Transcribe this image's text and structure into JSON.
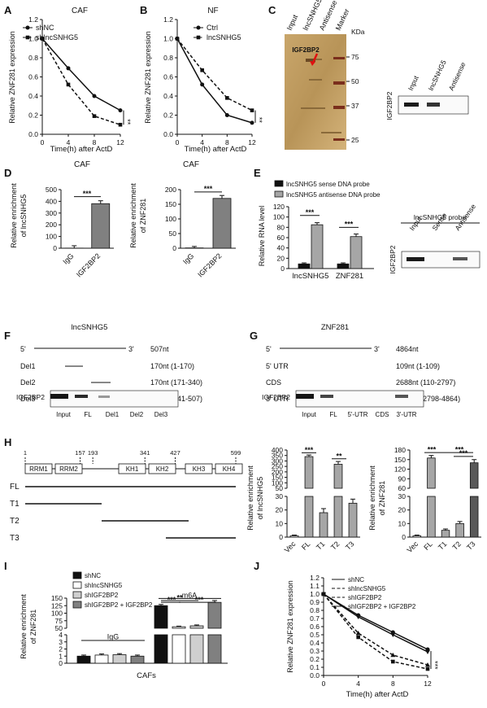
{
  "panels": {
    "A": {
      "letter": "A",
      "title": "CAF",
      "xlabel": "Time(h) after ActD",
      "ylabel": "Relative ZNF281 expression",
      "sig": "**",
      "xticks": [
        "0",
        "4",
        "8",
        "12"
      ],
      "yticks": [
        "0.0",
        "0.2",
        "0.4",
        "0.6",
        "0.8",
        "1.0",
        "1.2"
      ]
    },
    "B": {
      "letter": "B",
      "title": "NF",
      "xlabel": "Time(h) after ActD",
      "ylabel": "Relative ZNF281 expression",
      "sig": "**",
      "xticks": [
        "0",
        "4",
        "8",
        "12"
      ],
      "yticks": [
        "0.0",
        "0.2",
        "0.4",
        "0.6",
        "0.8",
        "1.0",
        "1.2"
      ]
    },
    "C": {
      "letter": "C",
      "lanes": [
        "Input",
        "lncSNHG5",
        "Antisense",
        "Marker"
      ],
      "kda_label": "KDa",
      "kda": [
        "75",
        "50",
        "37",
        "25"
      ],
      "band_label": "IGF2BP2",
      "wb_lanes": [
        "Input",
        "lncSNHG5",
        "Antisense"
      ],
      "wb_label": "IGF2BP2"
    },
    "D1": {
      "letter": "D",
      "title": "CAF",
      "ylabel1": "Relative enrichment",
      "ylabel2": "of  lncSNHG5",
      "sig": "***",
      "yticks": [
        "0",
        "100",
        "200",
        "300",
        "400",
        "500"
      ]
    },
    "D2": {
      "title": "CAF",
      "ylabel1": "Relative enrichment",
      "ylabel2": "of ZNF281",
      "sig": "***",
      "yticks": [
        "0",
        "50",
        "100",
        "150",
        "200"
      ]
    },
    "E": {
      "letter": "E",
      "ylabel": "Relative RNA level",
      "legend": [
        "lncSNHG5 sense DNA probe",
        "lncSNHG5 antisense DNA probe"
      ],
      "sig1": "***",
      "sig2": "***",
      "yticks": [
        "0",
        "20",
        "40",
        "60",
        "80",
        "100",
        "120"
      ],
      "probe_title": "lncSNHG5 probe",
      "wb_lanes": [
        "Input",
        "Sense",
        "Antisense"
      ],
      "wb_label": "IGF2BP2"
    },
    "F": {
      "letter": "F",
      "gene": "lncSNHG5",
      "five": "5'",
      "three": "3'",
      "rows": [
        {
          "name": "",
          "len": "507nt"
        },
        {
          "name": "Del1",
          "len": "170nt (1-170)"
        },
        {
          "name": "Del2",
          "len": "170nt (171-340)"
        },
        {
          "name": "Del3",
          "len": "167nt (341-507)"
        }
      ],
      "wb_label": "IGF2BP2",
      "lanes": [
        "Input",
        "FL",
        "Del1",
        "Del2",
        "Del3"
      ]
    },
    "G": {
      "letter": "G",
      "gene": "ZNF281",
      "five": "5'",
      "three": "3'",
      "rows": [
        {
          "name": "",
          "len": "4864nt"
        },
        {
          "name": "5' UTR",
          "len": "109nt (1-109)"
        },
        {
          "name": "CDS",
          "len": "2688nt (110-2797)"
        },
        {
          "name": "3' UTR",
          "len": "2067nt (2798-4864)"
        }
      ],
      "wb_label": "IGF2BP2",
      "lanes": [
        "Input",
        "FL",
        "5'-UTR",
        "CDS",
        "3'-UTR"
      ]
    },
    "H": {
      "letter": "H",
      "positions": [
        "1",
        "157",
        "193",
        "341",
        "427",
        "599"
      ],
      "domains": [
        "RRM1",
        "RRM2",
        "KH1",
        "KH2",
        "KH3",
        "KH4"
      ],
      "constructs": [
        "FL",
        "T1",
        "T2",
        "T3"
      ],
      "h1": {
        "ylabel1": "Relative enrichment",
        "ylabel2": "of lncSNHG5",
        "yticks_top": [
          "50",
          "100",
          "150",
          "200",
          "250",
          "300",
          "350",
          "400"
        ],
        "yticks_bot": [
          "0",
          "10",
          "20",
          "30"
        ],
        "sig": [
          "***",
          "**"
        ]
      },
      "h2": {
        "ylabel1": "Relative enrichment",
        "ylabel2": "of ZNF281",
        "yticks_top": [
          "60",
          "90",
          "120",
          "150",
          "180"
        ],
        "yticks_bot": [
          "0",
          "10",
          "20",
          "30"
        ],
        "sig": [
          "***",
          "***",
          "***"
        ]
      }
    },
    "I": {
      "letter": "I",
      "legend": [
        "shNC",
        "shlncSNHG5",
        "shIGF2BP2",
        "shIGF2BP2 + IGF2BP2"
      ],
      "ylabel1": "Relative enrichment",
      "ylabel2": "of ZNF281",
      "igg": "IgG",
      "m6a": "m6A",
      "xlabel": "CAFs",
      "yticks_top": [
        "50",
        "75",
        "100",
        "125",
        "150"
      ],
      "yticks_bot": [
        "0",
        "1",
        "2",
        "3",
        "4"
      ],
      "sig": [
        "***",
        "**",
        "***"
      ]
    },
    "J": {
      "letter": "J",
      "legend": [
        "shNC",
        "shlncSNHG5",
        "shIGF2BP2",
        "shIGF2BP2 + IGF2BP2"
      ],
      "xlabel": "Time(h) after ActD",
      "ylabel": "Relative  ZNF281 expression",
      "sig": "***",
      "xticks": [
        "0",
        "4",
        "8",
        "12"
      ],
      "yticks": [
        "0.0",
        "0.1",
        "0.2",
        "0.3",
        "0.4",
        "0.5",
        "0.6",
        "0.7",
        "0.8",
        "0.9",
        "1.0",
        "1.1",
        "1.2"
      ]
    }
  },
  "chart_data": [
    {
      "type": "line",
      "panel": "A",
      "title": "CAF",
      "xlabel": "Time(h) after ActD",
      "ylabel": "Relative ZNF281 expression",
      "x": [
        0,
        4,
        8,
        12
      ],
      "xlim": [
        0,
        12
      ],
      "ylim": [
        0,
        1.2
      ],
      "series": [
        {
          "name": "shNC",
          "style": "solid",
          "values": [
            1.0,
            0.69,
            0.4,
            0.25
          ]
        },
        {
          "name": "shlncSNHG5",
          "style": "dashed",
          "values": [
            1.0,
            0.52,
            0.19,
            0.1
          ]
        }
      ]
    },
    {
      "type": "line",
      "panel": "B",
      "title": "NF",
      "xlabel": "Time(h) after ActD",
      "ylabel": "Relative ZNF281 expression",
      "x": [
        0,
        4,
        8,
        12
      ],
      "xlim": [
        0,
        12
      ],
      "ylim": [
        0,
        1.2
      ],
      "series": [
        {
          "name": "Ctrl",
          "style": "solid",
          "values": [
            1.0,
            0.52,
            0.2,
            0.12
          ]
        },
        {
          "name": "lncSNHG5",
          "style": "dashed",
          "values": [
            1.0,
            0.67,
            0.38,
            0.25
          ]
        }
      ]
    },
    {
      "type": "bar",
      "panel": "D-left",
      "title": "CAF",
      "categories": [
        "IgG",
        "IGF2BP2"
      ],
      "values": [
        1.0,
        380
      ],
      "errors": [
        20,
        25
      ],
      "colors": [
        "#d9d9d9",
        "#808080"
      ],
      "ylim": [
        0,
        500
      ]
    },
    {
      "type": "bar",
      "panel": "D-right",
      "title": "CAF",
      "categories": [
        "IgG",
        "IGF2BP2"
      ],
      "values": [
        1.0,
        170
      ],
      "errors": [
        5,
        10
      ],
      "colors": [
        "#d9d9d9",
        "#808080"
      ],
      "ylim": [
        0,
        200
      ]
    },
    {
      "type": "bar",
      "panel": "E",
      "ylabel": "Relative RNA level",
      "categories": [
        "lncSNHG5",
        "ZNF281"
      ],
      "ylim": [
        0,
        120
      ],
      "series": [
        {
          "name": "lncSNHG5 sense DNA probe",
          "color": "#111111",
          "values": [
            9,
            9
          ],
          "errors": [
            2,
            2
          ]
        },
        {
          "name": "lncSNHG5 antisense DNA probe",
          "color": "#a6a6a6",
          "values": [
            85,
            62
          ],
          "errors": [
            4,
            5
          ]
        }
      ]
    },
    {
      "type": "bar",
      "panel": "H-lncSNHG5",
      "categories": [
        "Vec",
        "FL",
        "T1",
        "T2",
        "T3"
      ],
      "values": [
        1,
        340,
        18,
        270,
        25
      ],
      "errors": [
        0.5,
        15,
        3,
        25,
        3
      ],
      "colors": [
        "#f2f2f2",
        "#a6a6a6",
        "#a6a6a6",
        "#a6a6a6",
        "#a6a6a6"
      ]
    },
    {
      "type": "bar",
      "panel": "H-ZNF281",
      "categories": [
        "Vec",
        "FL",
        "T1",
        "T2",
        "T3"
      ],
      "values": [
        1,
        155,
        5,
        10,
        140
      ],
      "errors": [
        0.5,
        8,
        1,
        1.5,
        10
      ],
      "colors": [
        "#f2f2f2",
        "#a6a6a6",
        "#a6a6a6",
        "#a6a6a6",
        "#595959"
      ]
    },
    {
      "type": "bar",
      "panel": "I",
      "xlabel": "CAFs",
      "groups": [
        "IgG",
        "m6A"
      ],
      "series": [
        {
          "name": "shNC",
          "color": "#111111",
          "values": [
            1.0,
            125
          ],
          "errors": [
            0.15,
            4
          ]
        },
        {
          "name": "shlncSNHG5",
          "color": "#ffffff",
          "values": [
            1.15,
            55
          ],
          "errors": [
            0.15,
            2
          ]
        },
        {
          "name": "shIGF2BP2",
          "color": "#cfcfcf",
          "values": [
            1.2,
            58
          ],
          "errors": [
            0.15,
            3
          ]
        },
        {
          "name": "shIGF2BP2 + IGF2BP2",
          "color": "#808080",
          "values": [
            1.0,
            136
          ],
          "errors": [
            0.15,
            6
          ]
        }
      ]
    },
    {
      "type": "line",
      "panel": "J",
      "xlabel": "Time(h) after ActD",
      "ylabel": "Relative  ZNF281 expression",
      "x": [
        0,
        4,
        8,
        12
      ],
      "xlim": [
        0,
        12
      ],
      "ylim": [
        0,
        1.2
      ],
      "series": [
        {
          "name": "shNC",
          "style": "solid",
          "values": [
            1.0,
            0.74,
            0.53,
            0.32
          ]
        },
        {
          "name": "shlncSNHG5",
          "style": "dashed",
          "values": [
            1.0,
            0.47,
            0.17,
            0.08
          ]
        },
        {
          "name": "shIGF2BP2",
          "style": "dashed",
          "values": [
            1.0,
            0.52,
            0.25,
            0.13
          ]
        },
        {
          "name": "shIGF2BP2 + IGF2BP2",
          "style": "solid",
          "values": [
            1.0,
            0.72,
            0.5,
            0.29
          ]
        }
      ]
    }
  ]
}
